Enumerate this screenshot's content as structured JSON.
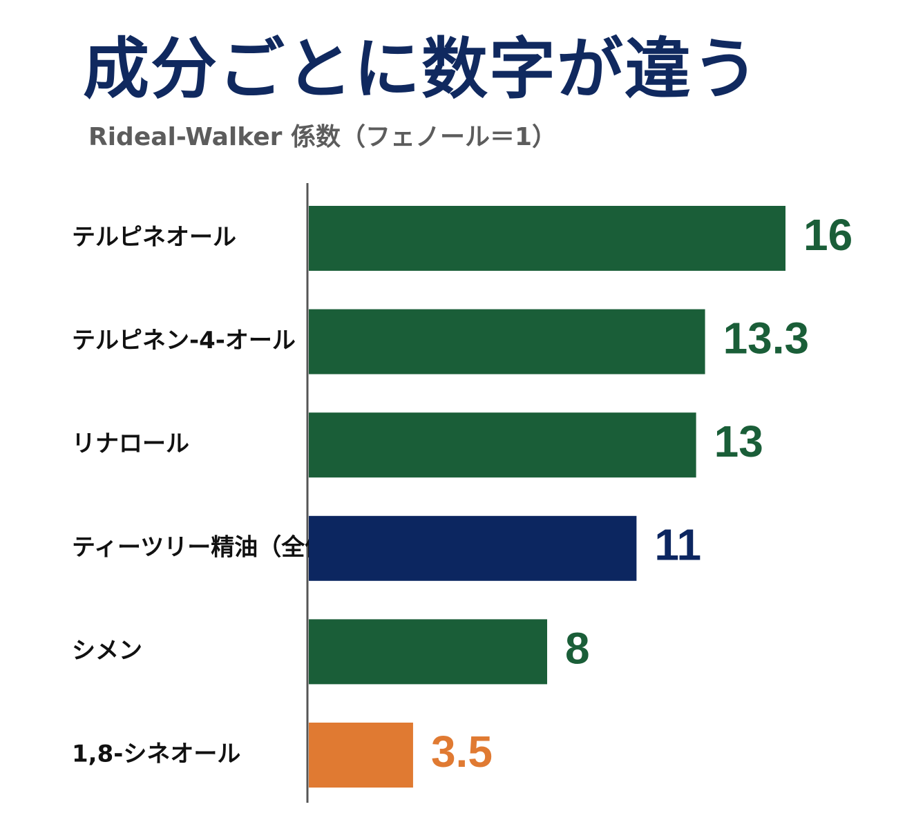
{
  "chart_data": {
    "type": "bar",
    "orientation": "horizontal",
    "title": "成分ごとに数字が違う",
    "subtitle": "Rideal-Walker 係数（フェノール＝1）",
    "categories": [
      "テルピネオール",
      "テルピネン-4-オール",
      "リナロール",
      "ティーツリー精油（全体）",
      "シメン",
      "1,8-シネオール"
    ],
    "values": [
      16,
      13.3,
      13,
      11,
      8,
      3.5
    ],
    "value_labels": [
      "16",
      "13.3",
      "13",
      "11",
      "8",
      "3.5"
    ],
    "colors": [
      "#1a5e38",
      "#1a5e38",
      "#1a5e38",
      "#0c2660",
      "#1a5e38",
      "#e07a32"
    ],
    "xlim": [
      0,
      16
    ],
    "grid": false,
    "legend": "none"
  }
}
